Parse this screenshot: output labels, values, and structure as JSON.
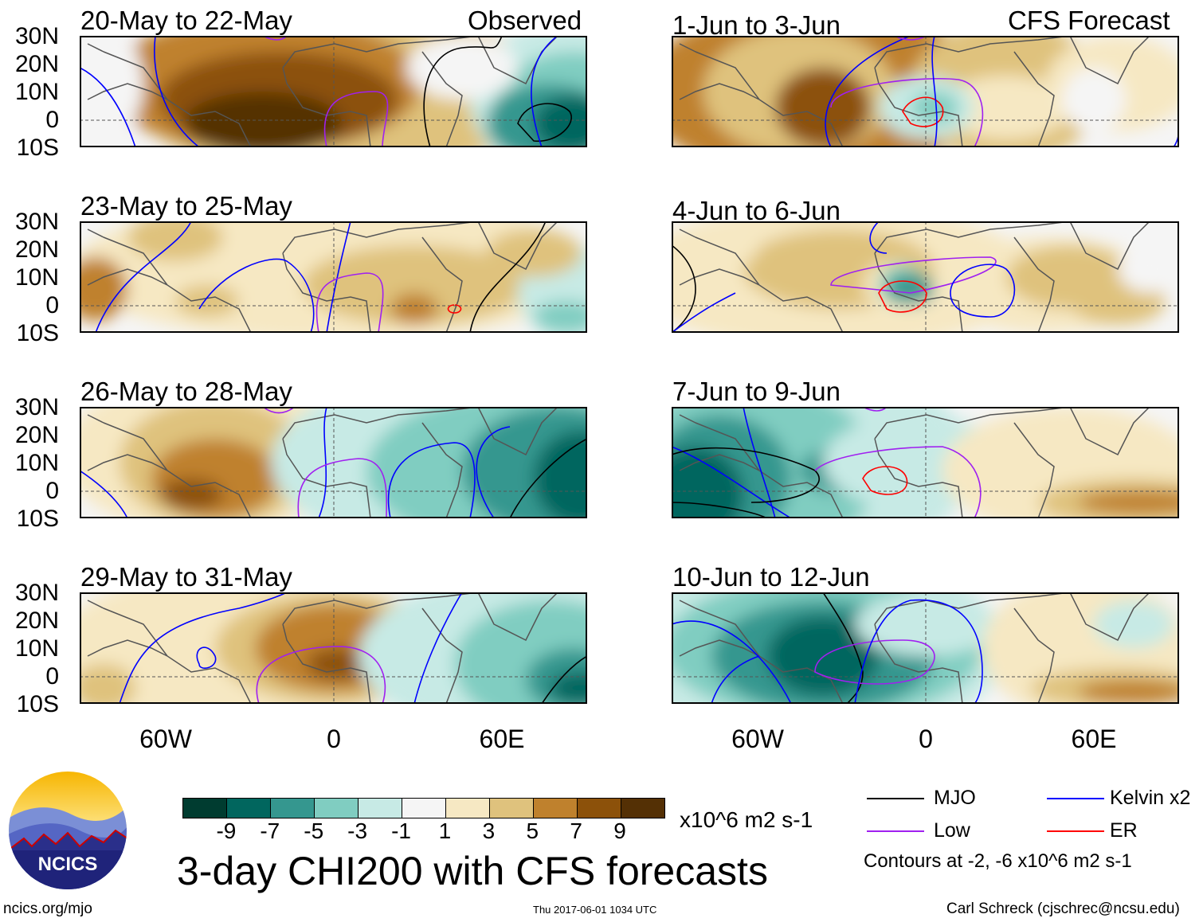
{
  "column_headers": {
    "left": "Observed",
    "right": "CFS Forecast"
  },
  "panels": [
    {
      "title": "20-May to 22-May",
      "column": "observed"
    },
    {
      "title": "23-May to 25-May",
      "column": "observed"
    },
    {
      "title": "26-May to 28-May",
      "column": "observed"
    },
    {
      "title": "29-May to 31-May",
      "column": "observed"
    },
    {
      "title": "1-Jun to 3-Jun",
      "column": "forecast"
    },
    {
      "title": "4-Jun to 6-Jun",
      "column": "forecast"
    },
    {
      "title": "7-Jun to 9-Jun",
      "column": "forecast"
    },
    {
      "title": "10-Jun to 12-Jun",
      "column": "forecast"
    }
  ],
  "lat_labels": [
    "30N",
    "20N",
    "10N",
    "0",
    "10S"
  ],
  "lon_labels": [
    "60W",
    "0",
    "60E"
  ],
  "colorbar": {
    "colors": [
      "#003c30",
      "#01665e",
      "#35978f",
      "#80cdc1",
      "#c7eae5",
      "#f5f5f5",
      "#f6e8c3",
      "#dfc27d",
      "#bf812d",
      "#8c510a",
      "#543005"
    ],
    "labels": [
      "-9",
      "-7",
      "-5",
      "-3",
      "-1",
      "1",
      "3",
      "5",
      "7",
      "9"
    ],
    "units": "x10^6 m2 s-1"
  },
  "title": "3-day CHI200 with CFS forecasts",
  "legend": {
    "items": [
      {
        "label": "MJO",
        "color": "#000000"
      },
      {
        "label": "Kelvin x2",
        "color": "#0000ff"
      },
      {
        "label": "Low",
        "color": "#a020f0"
      },
      {
        "label": "ER",
        "color": "#ff0000"
      }
    ],
    "note": "Contours at -2, -6 x10^6 m2 s-1"
  },
  "logo": {
    "text": "NCICS"
  },
  "footer": {
    "url": "ncics.org/mjo",
    "timestamp": "Thu 2017-06-01 1034 UTC",
    "credit": "Carl Schreck (cjschrec@ncsu.edu)"
  }
}
